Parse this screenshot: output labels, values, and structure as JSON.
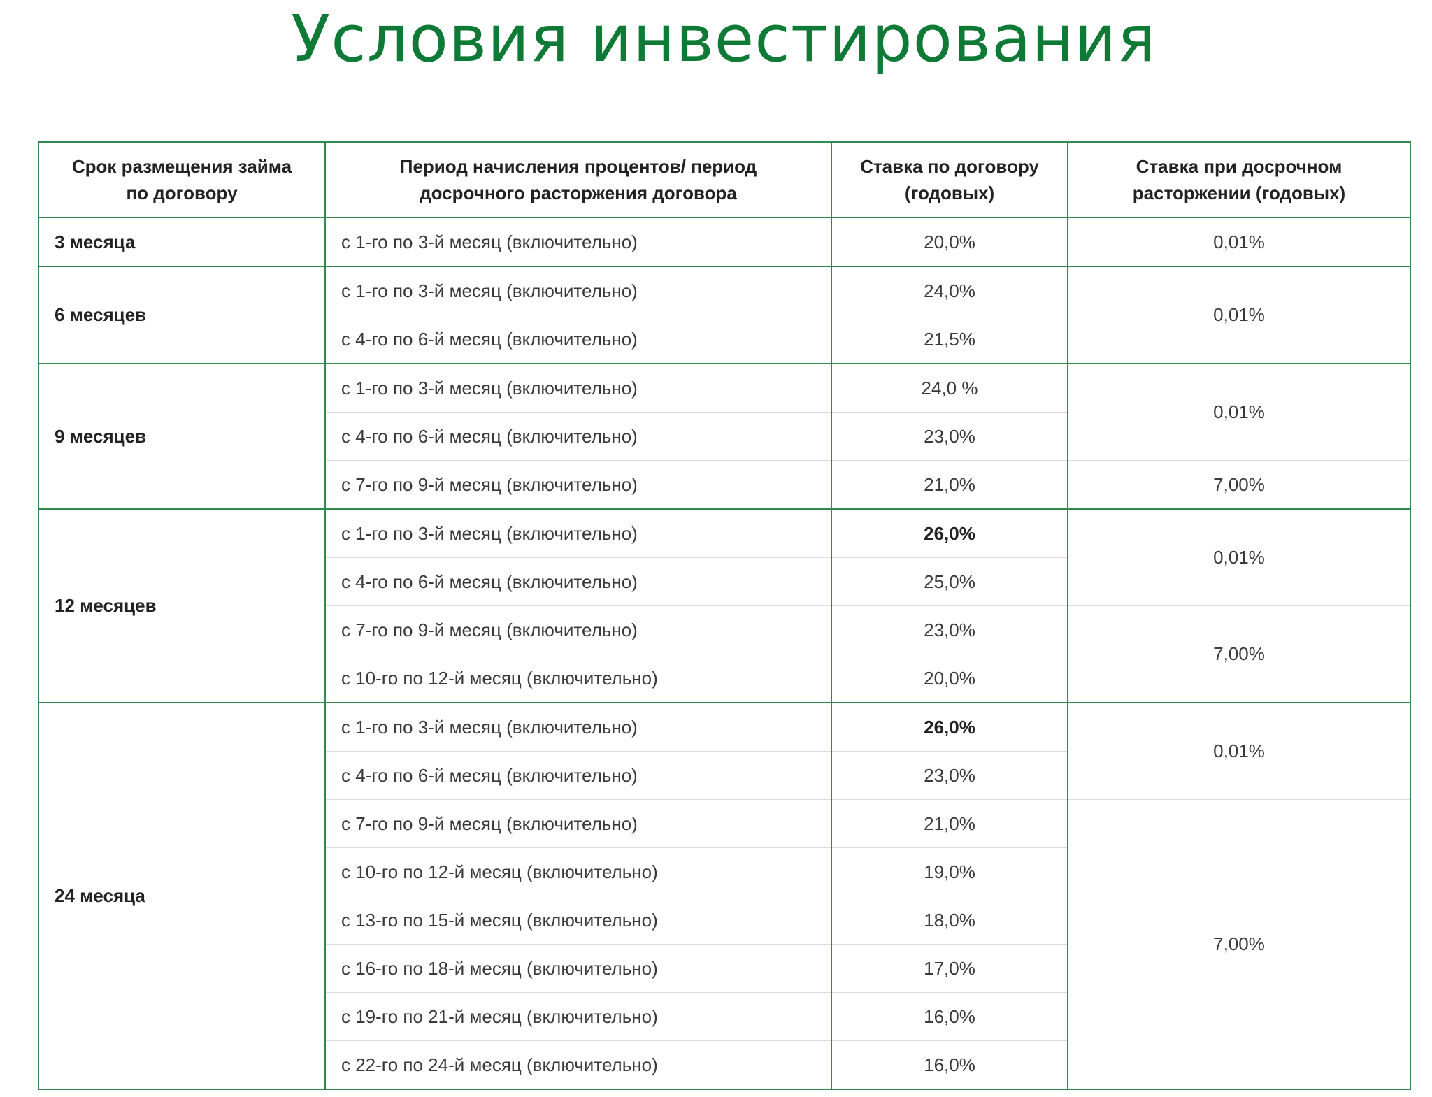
{
  "title": "Условия инвестирования",
  "headers": {
    "term": "Срок размещения займа по договору",
    "period": "Период начисления процентов/ период досрочного расторжения договора",
    "rate": "Ставка по договору (годовых)",
    "early": "Ставка при досрочном расторжении (годовых)"
  },
  "groups": [
    {
      "term": "3 месяца",
      "rows": [
        {
          "period": "с 1-го по 3-й месяц (включительно)",
          "rate": "20,0%"
        }
      ],
      "early": [
        "0,01%"
      ]
    },
    {
      "term": "6 месяцев",
      "rows": [
        {
          "period": "с 1-го по 3-й месяц (включительно)",
          "rate": "24,0%"
        },
        {
          "period": "с 4-го по 6-й месяц (включительно)",
          "rate": "21,5%"
        }
      ],
      "early": [
        "0,01%"
      ]
    },
    {
      "term": "9 месяцев",
      "rows": [
        {
          "period": "с 1-го по 3-й месяц (включительно)",
          "rate": "24,0 %"
        },
        {
          "period": "с 4-го по 6-й месяц (включительно)",
          "rate": "23,0%"
        },
        {
          "period": "с 7-го по 9-й месяц (включительно)",
          "rate": "21,0%"
        }
      ],
      "early": [
        "0,01%",
        "7,00%"
      ]
    },
    {
      "term": "12 месяцев",
      "rows": [
        {
          "period": "с 1-го по 3-й месяц (включительно)",
          "rate": "26,0%"
        },
        {
          "period": "с 4-го по 6-й месяц (включительно)",
          "rate": "25,0%"
        },
        {
          "period": "с 7-го по 9-й месяц (включительно)",
          "rate": "23,0%"
        },
        {
          "period": "с 10-го по 12-й месяц (включительно)",
          "rate": "20,0%"
        }
      ],
      "early": [
        "0,01%",
        "7,00%"
      ]
    },
    {
      "term": "24 месяца",
      "rows": [
        {
          "period": "с 1-го по 3-й месяц (включительно)",
          "rate": "26,0%"
        },
        {
          "period": "с 4-го по 6-й месяц (включительно)",
          "rate": "23,0%"
        },
        {
          "period": "с 7-го по 9-й месяц (включительно)",
          "rate": "21,0%"
        },
        {
          "period": "с 10-го по 12-й месяц (включительно)",
          "rate": "19,0%"
        },
        {
          "period": "с 13-го по 15-й месяц (включительно)",
          "rate": "18,0%"
        },
        {
          "period": "с 16-го по 18-й месяц (включительно)",
          "rate": "17,0%"
        },
        {
          "period": "с 19-го по 21-й месяц (включительно)",
          "rate": "16,0%"
        },
        {
          "period": "с 22-го по 24-й месяц (включительно)",
          "rate": "16,0%"
        }
      ],
      "early": [
        "0,01%",
        "7,00%"
      ]
    }
  ]
}
